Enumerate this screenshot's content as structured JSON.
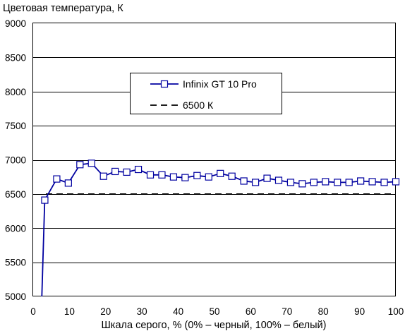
{
  "chart_data": {
    "type": "line",
    "title": "",
    "ylabel": "Цветовая температура, К",
    "xlabel": "Шкала серого, % (0% – черный, 100% – белый)",
    "xlim": [
      0,
      100
    ],
    "ylim": [
      5000,
      9000
    ],
    "x_ticks": [
      0,
      10,
      20,
      30,
      40,
      50,
      60,
      70,
      80,
      90,
      100
    ],
    "y_ticks": [
      5000,
      5500,
      6000,
      6500,
      7000,
      7500,
      8000,
      8500,
      9000
    ],
    "x_tick_labels": [
      "0",
      "10",
      "20",
      "30",
      "40",
      "50",
      "60",
      "70",
      "80",
      "90",
      "100"
    ],
    "y_tick_labels": [
      "5000",
      "5500",
      "6000",
      "6500",
      "7000",
      "7500",
      "8000",
      "8500",
      "9000"
    ],
    "grid": "horizontal",
    "legend_position": "top-center",
    "series": [
      {
        "name": "Infinix GT 10 Pro",
        "color": "#0000a0",
        "style": "solid-with-square-markers",
        "x": [
          2.4,
          3.2,
          6.5,
          9.7,
          12.9,
          16.1,
          19.4,
          22.6,
          25.8,
          29.0,
          32.3,
          35.5,
          38.7,
          41.9,
          45.2,
          48.4,
          51.6,
          54.8,
          58.1,
          61.3,
          64.5,
          67.7,
          71.0,
          74.2,
          77.4,
          80.6,
          83.9,
          87.1,
          90.3,
          93.5,
          96.8,
          100
        ],
        "y": [
          5000,
          6410,
          6720,
          6660,
          6930,
          6950,
          6760,
          6830,
          6820,
          6860,
          6780,
          6780,
          6750,
          6740,
          6770,
          6750,
          6800,
          6760,
          6690,
          6670,
          6730,
          6700,
          6670,
          6650,
          6670,
          6680,
          6670,
          6670,
          6690,
          6680,
          6670,
          6680
        ],
        "markers": [
          false,
          true,
          true,
          true,
          true,
          true,
          true,
          true,
          true,
          true,
          true,
          true,
          true,
          true,
          true,
          true,
          true,
          true,
          true,
          true,
          true,
          true,
          true,
          true,
          true,
          true,
          true,
          true,
          true,
          true,
          true,
          true
        ]
      },
      {
        "name": "6500 К",
        "color": "#000000",
        "style": "dashed",
        "x": [
          3.5,
          100
        ],
        "y": [
          6500,
          6500
        ]
      }
    ]
  }
}
